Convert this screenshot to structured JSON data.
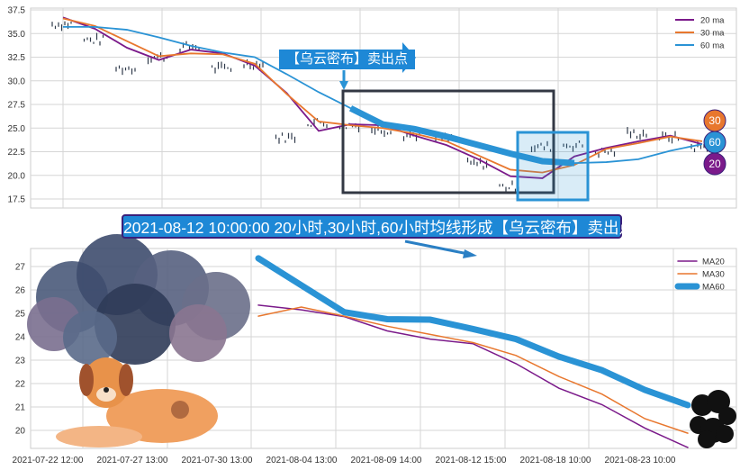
{
  "chart_data": [
    {
      "type": "line",
      "panel": "top",
      "ylim": [
        16.5,
        38
      ],
      "yticks": [
        "37.5",
        "35.0",
        "32.5",
        "30.0",
        "27.5",
        "25.0",
        "22.5",
        "20.0",
        "17.5"
      ],
      "grid": true,
      "legend_placement": "top-right",
      "series": [
        {
          "name": "20 ma",
          "color": "#7b1a8a",
          "values": [
            36.7,
            35.5,
            33.5,
            32.2,
            33.3,
            32.9,
            31.6,
            28.7,
            24.7,
            25.4,
            25.3,
            24.2,
            23.2,
            21.7,
            19.9,
            19.7,
            22.0,
            22.9,
            23.6,
            24.2,
            23.3
          ]
        },
        {
          "name": "30 ma",
          "color": "#e8772e",
          "values": [
            36.6,
            35.8,
            34.2,
            32.6,
            32.9,
            32.8,
            31.8,
            28.6,
            25.7,
            25.3,
            25.0,
            24.4,
            23.6,
            22.1,
            20.6,
            20.3,
            21.1,
            22.8,
            23.4,
            24.1,
            23.6
          ]
        },
        {
          "name": "60 ma",
          "color": "#2a93d5",
          "values": [
            35.7,
            35.7,
            35.4,
            34.6,
            33.7,
            33.0,
            32.5,
            30.7,
            28.8,
            27.1,
            25.4,
            24.9,
            24.1,
            23.2,
            22.3,
            21.5,
            21.3,
            21.4,
            21.7,
            22.6,
            23.3
          ]
        }
      ],
      "price_bars": [
        36.0,
        34.3,
        31.3,
        32.5,
        33.6,
        31.3,
        31.8,
        24.0,
        25.6,
        25.3,
        24.8,
        24.3,
        23.9,
        21.2,
        18.8,
        23.0,
        23.2,
        22.5,
        24.4,
        24.0,
        23.0
      ],
      "annotations": {
        "signal_label": "【乌云密布】卖出点",
        "bubbles": [
          {
            "text": "30",
            "color": "#e8772e"
          },
          {
            "text": "60",
            "color": "#2a93d5"
          },
          {
            "text": "20",
            "color": "#7b1a8a"
          }
        ]
      }
    },
    {
      "type": "line",
      "panel": "bottom",
      "ylim": [
        19.3,
        27.8
      ],
      "yticks": [
        "27",
        "26",
        "25",
        "24",
        "23",
        "22",
        "21",
        "20"
      ],
      "xticks": [
        "2021-07-22 12:00",
        "2021-07-27 13:00",
        "2021-07-30 13:00",
        "2021-08-04 13:00",
        "2021-08-09 14:00",
        "2021-08-12 15:00",
        "2021-08-18 10:00",
        "2021-08-23 10:00"
      ],
      "grid": true,
      "legend_placement": "top-right",
      "series": [
        {
          "name": "MA20",
          "color": "#7b1a8a",
          "values": [
            25.35,
            25.15,
            24.86,
            24.25,
            23.9,
            23.7,
            22.85,
            21.8,
            21.1,
            20.1,
            19.27
          ]
        },
        {
          "name": "MA30",
          "color": "#e8772e",
          "values": [
            24.88,
            25.27,
            24.88,
            24.45,
            24.1,
            23.75,
            23.2,
            22.3,
            21.55,
            20.5,
            19.88
          ]
        },
        {
          "name": "MA60",
          "color": "#2a93d5",
          "values": [
            27.35,
            26.2,
            25.05,
            24.75,
            24.73,
            24.33,
            23.9,
            23.15,
            22.57,
            21.73,
            21.08
          ]
        }
      ]
    }
  ],
  "banner": {
    "text": "2021-08-12 10:00:00 20小时,30小时,60小时均线形成【乌云密布】卖出点"
  }
}
